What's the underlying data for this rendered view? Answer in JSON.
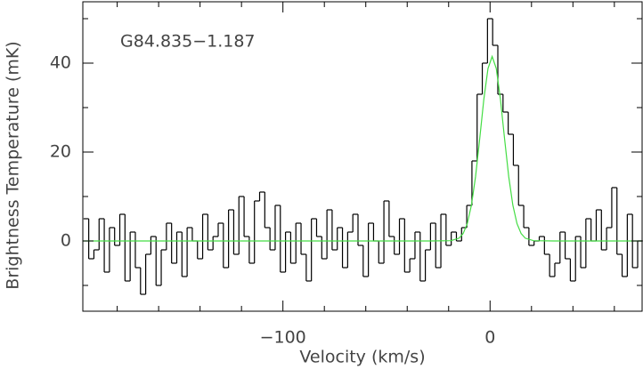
{
  "chart_data": {
    "type": "step",
    "annotation": "G84.835−1.187",
    "xlabel": "Velocity (km/s)",
    "ylabel": "Brightness Temperature (mK)",
    "xlim": [
      -196.6,
      73.4
    ],
    "ylim": [
      -15.8,
      53.8
    ],
    "xticks": [
      {
        "value": -100,
        "label": "−100"
      },
      0
    ],
    "yticks": [
      0,
      20,
      40
    ],
    "xminorticks": [
      -180,
      -160,
      -140,
      -120,
      -80,
      -60,
      -40,
      -20,
      20,
      40,
      60
    ],
    "yminorticks": [
      -10,
      10,
      30,
      50
    ],
    "series": [
      {
        "name": "spectrum",
        "color": "#000000",
        "x": [
          -195,
          -192.5,
          -190,
          -187.5,
          -185,
          -182.5,
          -180,
          -177.5,
          -175,
          -172.5,
          -170,
          -167.5,
          -165,
          -162.5,
          -160,
          -157.5,
          -155,
          -152.5,
          -150,
          -147.5,
          -145,
          -142.5,
          -140,
          -137.5,
          -135,
          -132.5,
          -130,
          -127.5,
          -125,
          -122.5,
          -120,
          -117.5,
          -115,
          -112.5,
          -110,
          -107.5,
          -105,
          -102.5,
          -100,
          -97.5,
          -95,
          -92.5,
          -90,
          -87.5,
          -85,
          -82.5,
          -80,
          -77.5,
          -75,
          -72.5,
          -70,
          -67.5,
          -65,
          -62.5,
          -60,
          -57.5,
          -55,
          -52.5,
          -50,
          -47.5,
          -45,
          -42.5,
          -40,
          -37.5,
          -35,
          -32.5,
          -30,
          -27.5,
          -25,
          -22.5,
          -20,
          -17.5,
          -15,
          -12.5,
          -10,
          -7.5,
          -5,
          -2.5,
          0,
          2.5,
          5,
          7.5,
          10,
          12.5,
          15,
          17.5,
          20,
          22.5,
          25,
          27.5,
          30,
          32.5,
          35,
          37.5,
          40,
          42.5,
          45,
          47.5,
          50,
          52.5,
          55,
          57.5,
          60,
          62.5,
          65,
          67.5,
          70,
          72.5
        ],
        "values": [
          5,
          -4,
          -2,
          5,
          -7,
          3,
          -1,
          6,
          -9,
          2,
          -6,
          -12,
          -3,
          1,
          -10,
          -2,
          4,
          -5,
          2,
          -8,
          3,
          0,
          -4,
          6,
          -2,
          1,
          4,
          -6,
          7,
          -3,
          10,
          1,
          -5,
          9,
          11,
          3,
          -2,
          8,
          -7,
          2,
          -5,
          4,
          -3,
          -9,
          5,
          1,
          -4,
          7,
          -2,
          3,
          -6,
          2,
          6,
          -1,
          -8,
          4,
          0,
          -5,
          9,
          1,
          -3,
          5,
          -7,
          -4,
          2,
          -9,
          -2,
          4,
          -6,
          6,
          -1,
          2,
          0,
          3,
          8,
          18,
          33,
          40,
          50,
          44,
          33,
          29,
          24,
          17,
          8,
          3,
          -1,
          0,
          1,
          -3,
          -8,
          -5,
          2,
          -4,
          -9,
          1,
          -6,
          5,
          0,
          7,
          -2,
          3,
          12,
          -3,
          -8,
          6,
          -6,
          0
        ]
      },
      {
        "name": "fit",
        "color": "#44dd44",
        "x": [
          -196.6,
          -29,
          -19,
          -15,
          -13,
          -11,
          -9,
          -7,
          -5,
          -3,
          -1,
          1,
          3,
          5,
          7,
          9,
          11,
          13,
          15,
          17,
          21,
          31,
          73.4
        ],
        "values": [
          0,
          0,
          0.06,
          0.62,
          1.66,
          3.91,
          8.04,
          14.5,
          23.0,
          31.9,
          38.8,
          41.5,
          38.8,
          31.9,
          23.0,
          14.5,
          8.04,
          3.91,
          1.66,
          0.62,
          0.06,
          0,
          0
        ]
      }
    ]
  }
}
